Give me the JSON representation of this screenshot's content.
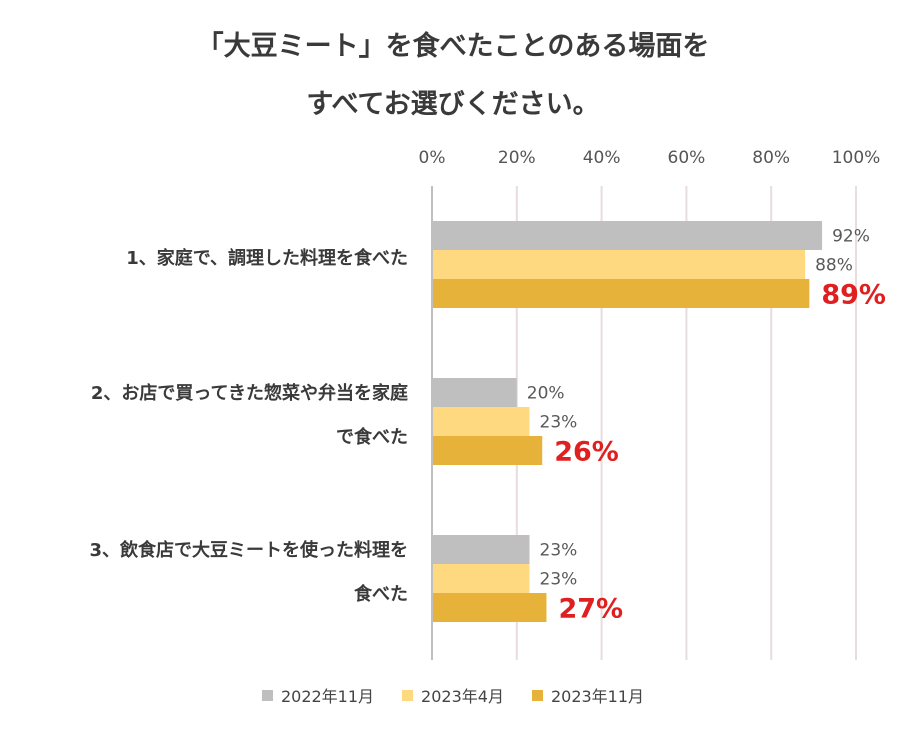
{
  "chart_data": {
    "type": "bar",
    "orientation": "horizontal",
    "title": [
      "「大豆ミート」を食べたことのある場面を",
      "すべてお選びください。"
    ],
    "categories": [
      [
        "1、家庭で、調理した料理を食べた"
      ],
      [
        "2、お店で買ってきた惣菜や弁当を家庭",
        "で食べた"
      ],
      [
        "3、飲食店で大豆ミートを使った料理を",
        "食べた"
      ]
    ],
    "series": [
      {
        "name": "2022年11月",
        "values": [
          92,
          20,
          23
        ],
        "color": "#bfbfbf"
      },
      {
        "name": "2023年4月",
        "values": [
          88,
          23,
          23
        ],
        "color": "#ffd97f"
      },
      {
        "name": "2023年11月",
        "values": [
          89,
          26,
          27
        ],
        "color": "#e6b23a"
      }
    ],
    "value_labels": [
      [
        "92%",
        "20%",
        "23%"
      ],
      [
        "88%",
        "23%",
        "23%"
      ],
      [
        "89%",
        "26%",
        "27%"
      ]
    ],
    "highlight_series": "2023年11月",
    "highlight_color": "#e02020",
    "xlim": [
      0,
      100
    ],
    "x_ticks": [
      "0%",
      "20%",
      "40%",
      "60%",
      "80%",
      "100%"
    ],
    "axis_position": "top",
    "grid": true,
    "legend_position": "bottom"
  }
}
